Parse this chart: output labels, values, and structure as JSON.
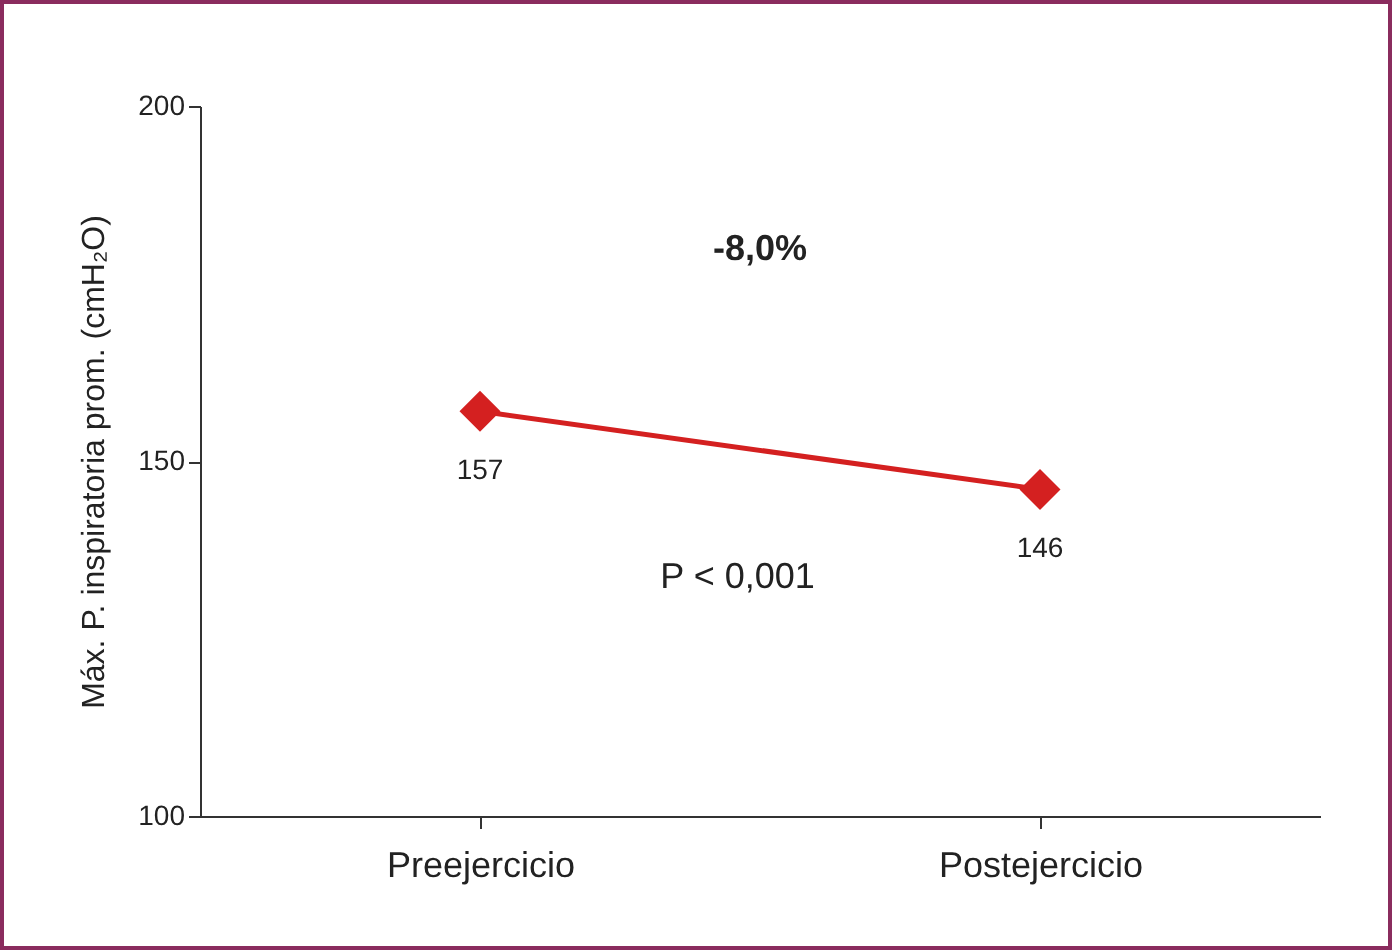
{
  "chart_data": {
    "type": "line",
    "ylabel": "Máx. P. inspiratoria prom. (cmH₂O)",
    "categories": [
      "Preejercicio",
      "Postejercicio"
    ],
    "values": [
      157,
      146
    ],
    "color": "#d42020",
    "marker": "diamond",
    "ylim": [
      100,
      200
    ],
    "yticks": [
      100,
      150,
      200
    ],
    "data_labels": true,
    "grid": false,
    "annotations": [
      "-8,0%",
      "P < 0,001"
    ]
  }
}
